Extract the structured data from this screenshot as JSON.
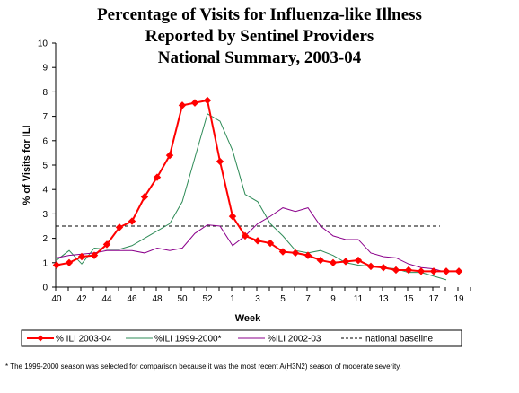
{
  "title_lines": [
    "Percentage of Visits for Influenza-like Illness",
    "Reported by Sentinel Providers",
    "National Summary, 2003-04"
  ],
  "footnote": "* The 1999-2000 season was selected for comparison because it was the most recent A(H3N2) season of moderate severity.",
  "chart_data": {
    "type": "line",
    "title": "Percentage of Visits for Influenza-like Illness Reported by Sentinel Providers National Summary, 2003-04",
    "xlabel": "Week",
    "ylabel": "% of Visits for ILI",
    "ylim": [
      0,
      10
    ],
    "yticks": [
      0,
      1,
      2,
      3,
      4,
      5,
      6,
      7,
      8,
      9,
      10
    ],
    "x_tick_labels": [
      "40",
      "42",
      "44",
      "46",
      "48",
      "50",
      "52",
      "1",
      "3",
      "5",
      "7",
      "9",
      "11",
      "13",
      "15",
      "17",
      "19"
    ],
    "categories": [
      "40",
      "41",
      "42",
      "43",
      "44",
      "45",
      "46",
      "47",
      "48",
      "49",
      "50",
      "51",
      "52",
      "1",
      "2",
      "3",
      "4",
      "5",
      "6",
      "7",
      "8",
      "9",
      "10",
      "11",
      "12",
      "13",
      "14",
      "15",
      "16",
      "17",
      "18",
      "19",
      "20"
    ],
    "grid": false,
    "legend_position": "bottom",
    "series": [
      {
        "name": "% ILI 2003-04",
        "color": "#ff0000",
        "marker": "diamond",
        "values": [
          0.9,
          1.0,
          1.25,
          1.3,
          1.75,
          2.45,
          2.7,
          3.7,
          4.5,
          5.4,
          7.45,
          7.55,
          7.65,
          5.15,
          2.9,
          2.1,
          1.9,
          1.8,
          1.45,
          1.4,
          1.3,
          1.1,
          1.0,
          1.05,
          1.1,
          0.85,
          0.8,
          0.7,
          0.7,
          0.65,
          0.65,
          0.65,
          0.65
        ]
      },
      {
        "name": "%ILI 1999-2000*",
        "color": "#2e8b57",
        "values": [
          1.1,
          1.5,
          0.95,
          1.6,
          1.55,
          1.55,
          1.7,
          2.0,
          2.3,
          2.6,
          3.5,
          5.3,
          7.1,
          6.8,
          5.6,
          3.8,
          3.5,
          2.6,
          2.1,
          1.5,
          1.4,
          1.5,
          1.3,
          1.0,
          0.9,
          0.85,
          0.8,
          0.75,
          0.6,
          0.6,
          0.45,
          0.3,
          null
        ]
      },
      {
        "name": "%ILI 2002-03",
        "color": "#8b008b",
        "values": [
          1.2,
          1.3,
          1.35,
          1.4,
          1.5,
          1.5,
          1.5,
          1.4,
          1.6,
          1.5,
          1.6,
          2.2,
          2.55,
          2.5,
          1.7,
          2.1,
          2.6,
          2.9,
          3.25,
          3.1,
          3.25,
          2.5,
          2.1,
          1.95,
          1.95,
          1.4,
          1.25,
          1.2,
          0.95,
          0.8,
          0.75,
          0.6,
          null
        ]
      }
    ],
    "baseline": {
      "name": "national baseline",
      "value": 2.5,
      "color": "#000000"
    }
  }
}
